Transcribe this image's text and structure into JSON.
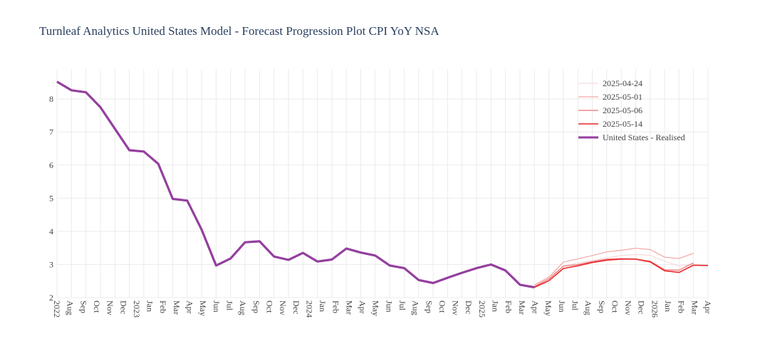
{
  "chart_data": {
    "type": "line",
    "title": "Turnleaf Analytics United States Model - Forecast Progression Plot CPI YoY NSA",
    "ylim": [
      2,
      8.9
    ],
    "yticks": [
      2,
      3,
      4,
      5,
      6,
      7,
      8
    ],
    "grid": true,
    "legend_position": "top-right",
    "x_months": [
      "Jul 2022",
      "Aug",
      "Sep",
      "Oct",
      "Nov",
      "Dec",
      "Jan 2023",
      "Feb",
      "Mar",
      "Apr",
      "May",
      "Jun",
      "Jul",
      "Aug",
      "Sep",
      "Oct",
      "Nov",
      "Dec",
      "Jan 2024",
      "Feb",
      "Mar",
      "Apr",
      "May",
      "Jun",
      "Jul",
      "Aug",
      "Sep",
      "Oct",
      "Nov",
      "Dec",
      "Jan 2025",
      "Feb",
      "Mar",
      "Apr",
      "May",
      "Jun",
      "Jul",
      "Aug",
      "Sep",
      "Oct",
      "Nov",
      "Dec",
      "Jan 2026",
      "Feb",
      "Mar",
      "Apr"
    ],
    "x_tick_labels": [
      "2022",
      "Aug",
      "Sep",
      "Oct",
      "Nov",
      "Dec",
      "2023",
      "Jan",
      "Feb",
      "Mar",
      "Apr",
      "May",
      "Jun",
      "Jul",
      "Aug",
      "Sep",
      "Oct",
      "Nov",
      "Dec",
      "2024",
      "Jan",
      "Feb",
      "Mar",
      "Apr",
      "May",
      "Jun",
      "Jul",
      "Aug",
      "Sep",
      "Oct",
      "Nov",
      "Dec",
      "2025",
      "Jan",
      "Feb",
      "Mar",
      "Apr",
      "May",
      "Jun",
      "Jul",
      "Aug",
      "Sep",
      "Oct",
      "Nov",
      "Dec",
      "2026",
      "Jan",
      "Feb",
      "Mar",
      "Apr"
    ],
    "series": [
      {
        "name": "United States - Realised",
        "color": "#943f9e",
        "x": [
          "2022-07",
          "2022-08",
          "2022-09",
          "2022-10",
          "2022-11",
          "2022-12",
          "2023-01",
          "2023-02",
          "2023-03",
          "2023-04",
          "2023-05",
          "2023-06",
          "2023-07",
          "2023-08",
          "2023-09",
          "2023-10",
          "2023-11",
          "2023-12",
          "2024-01",
          "2024-02",
          "2024-03",
          "2024-04",
          "2024-05",
          "2024-06",
          "2024-07",
          "2024-08",
          "2024-09",
          "2024-10",
          "2024-11",
          "2024-12",
          "2025-01",
          "2025-02",
          "2025-03",
          "2025-04"
        ],
        "values": [
          8.52,
          8.26,
          8.2,
          7.75,
          7.1,
          6.45,
          6.41,
          6.04,
          4.98,
          4.93,
          4.05,
          2.97,
          3.18,
          3.67,
          3.7,
          3.24,
          3.14,
          3.35,
          3.09,
          3.15,
          3.48,
          3.36,
          3.27,
          2.97,
          2.89,
          2.53,
          2.44,
          2.6,
          2.75,
          2.89,
          3.0,
          2.82,
          2.39,
          2.31
        ]
      },
      {
        "name": "2025-04-24",
        "color": "#f7dada",
        "x": [
          "2025-03",
          "2025-04",
          "2025-05",
          "2025-06",
          "2025-07",
          "2025-08",
          "2025-09",
          "2025-10",
          "2025-11",
          "2025-12",
          "2026-01",
          "2026-02",
          "2026-03"
        ],
        "values": [
          2.39,
          2.35,
          2.6,
          2.95,
          3.05,
          3.12,
          3.2,
          3.27,
          3.3,
          3.28,
          3.1,
          2.95,
          3.0
        ]
      },
      {
        "name": "2025-05-01",
        "color": "#f3a6a6",
        "x": [
          "2025-04",
          "2025-05",
          "2025-06",
          "2025-07",
          "2025-08",
          "2025-09",
          "2025-10",
          "2025-11",
          "2025-12",
          "2026-01",
          "2026-02",
          "2026-03"
        ],
        "values": [
          2.38,
          2.62,
          3.07,
          3.17,
          3.27,
          3.38,
          3.43,
          3.49,
          3.45,
          3.22,
          3.18,
          3.34
        ]
      },
      {
        "name": "2025-05-06",
        "color": "#ee7272",
        "x": [
          "2025-04",
          "2025-05",
          "2025-06",
          "2025-07",
          "2025-08",
          "2025-09",
          "2025-10",
          "2025-11",
          "2025-12",
          "2026-01",
          "2026-02",
          "2026-03"
        ],
        "values": [
          2.33,
          2.56,
          2.95,
          3.0,
          3.09,
          3.16,
          3.18,
          3.17,
          3.1,
          2.84,
          2.83,
          3.05
        ]
      },
      {
        "name": "2025-05-14",
        "color": "#e8272b",
        "x": [
          "2025-04",
          "2025-05",
          "2025-06",
          "2025-07",
          "2025-08",
          "2025-09",
          "2025-10",
          "2025-11",
          "2025-12",
          "2026-01",
          "2026-02",
          "2026-03",
          "2026-04"
        ],
        "values": [
          2.31,
          2.51,
          2.88,
          2.96,
          3.06,
          3.13,
          3.16,
          3.16,
          3.08,
          2.81,
          2.76,
          2.98,
          2.97
        ]
      }
    ],
    "legend_order": [
      "2025-04-24",
      "2025-05-01",
      "2025-05-06",
      "2025-05-14",
      "United States - Realised"
    ]
  }
}
